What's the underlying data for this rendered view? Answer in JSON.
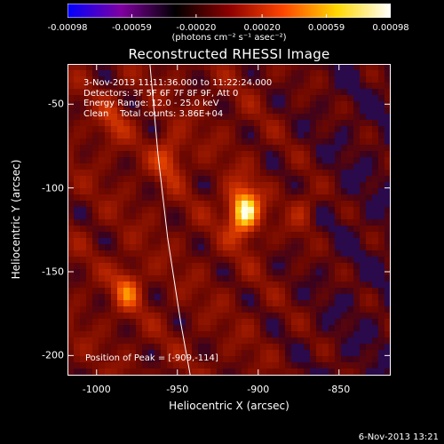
{
  "colorbar": {
    "tick_labels": [
      "-0.00098",
      "-0.00059",
      "-0.00020",
      "0.00020",
      "0.00059",
      "0.00098"
    ],
    "tick_values": [
      -0.00098,
      -0.00059,
      -0.0002,
      0.0002,
      0.00059,
      0.00098
    ],
    "range": [
      -0.00098,
      0.00098
    ],
    "unit_label": "(photons cm⁻² s⁻¹ asec⁻²)",
    "colors": [
      "#0000ff",
      "#8000a0",
      "#000000",
      "#8b0000",
      "#ff4500",
      "#ffd700",
      "#ffffff"
    ]
  },
  "annotations": {
    "time_range": "3-Nov-2013 11:11:36.000 to 11:22:24.000",
    "detectors": "Detectors: 3F 5F 6F 7F 8F 9F, Att 0",
    "energy_range": "Energy Range: 12.0 - 25.0 keV",
    "method_counts": "Clean    Total counts: 3.86E+04",
    "peak_position": "Position of Peak = [-909,-114]"
  },
  "footer": {
    "date": "6-Nov-2013 13:21"
  },
  "chart_data": {
    "type": "heatmap",
    "title": "Reconstructed RHESSI Image",
    "xlabel": "Heliocentric X (arcsec)",
    "ylabel": "Heliocentric Y (arcsec)",
    "xlim": [
      -1018,
      -818
    ],
    "ylim": [
      -212,
      -26
    ],
    "x_ticks": [
      -1000,
      -950,
      -900,
      -850
    ],
    "y_ticks": [
      -50,
      -100,
      -150,
      -200
    ],
    "x_tick_labels": [
      "-1000",
      "-950",
      "-900",
      "-850"
    ],
    "y_tick_labels": [
      "-50",
      "-100",
      "-150",
      "-200"
    ],
    "peak": {
      "x": -909,
      "y": -114,
      "value": 0.00098
    },
    "secondary_sources": [
      {
        "x": -955,
        "y": -82,
        "level": 0.45
      },
      {
        "x": -981,
        "y": -160,
        "level": 0.5
      },
      {
        "x": -872,
        "y": -112,
        "level": 0.3
      },
      {
        "x": -990,
        "y": -60,
        "level": 0.3
      }
    ],
    "limb_curve": [
      {
        "x": -967,
        "y": -26
      },
      {
        "x": -962,
        "y": -80
      },
      {
        "x": -956,
        "y": -130
      },
      {
        "x": -948,
        "y": -180
      },
      {
        "x": -942,
        "y": -212
      }
    ]
  }
}
